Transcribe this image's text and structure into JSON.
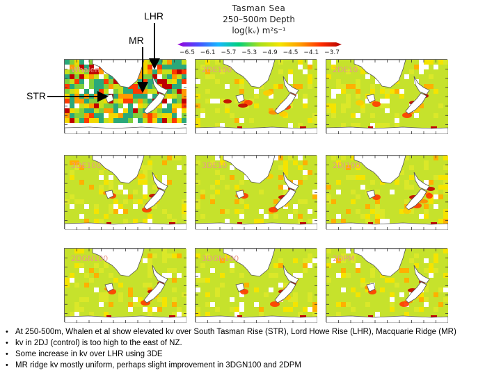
{
  "header": {
    "region": "Tasman Sea",
    "depth": "250–500m Depth",
    "units": "log(kᵥ)  m²s⁻¹"
  },
  "colorbar": {
    "ticks": [
      "−6.5",
      "−6.1",
      "−5.7",
      "−5.3",
      "−4.9",
      "−4.5",
      "−4.1",
      "−3.7"
    ],
    "stops": [
      "#9a00d8",
      "#4a4bff",
      "#15b7ff",
      "#00d07a",
      "#a7df1b",
      "#f4e400",
      "#ff9a00",
      "#ff2d00",
      "#b30000"
    ]
  },
  "annotations": {
    "str": "STR",
    "mr": "MR",
    "lhr": "LHR"
  },
  "chart_data": {
    "type": "heatmap",
    "title": "Tasman Sea 250–500m Depth log(kv) m2s-1",
    "colorbar_range": [
      -6.5,
      -3.7
    ],
    "panels": [
      {
        "name": "Whalen"
      },
      {
        "name": "2DE100"
      },
      {
        "name": "2DE10"
      },
      {
        "name": "3DE100"
      },
      {
        "name": "3DE10"
      },
      {
        "name": "2DJ100"
      },
      {
        "name": "2DGN100"
      },
      {
        "name": "3DGN100"
      },
      {
        "name": "2DPM"
      }
    ]
  },
  "notes": [
    "At 250-500m, Whalen et al show elevated kv over South Tasman Rise (STR), Lord Howe Rise (LHR), Macquarie Ridge (MR)",
    "kv in 2DJ (control) is too high to the east of NZ.",
    "Some increase in kv over LHR using 3DE",
    "MR ridge kv mostly uniform, perhaps slight improvement in 3DGN100 and 2DPM"
  ]
}
